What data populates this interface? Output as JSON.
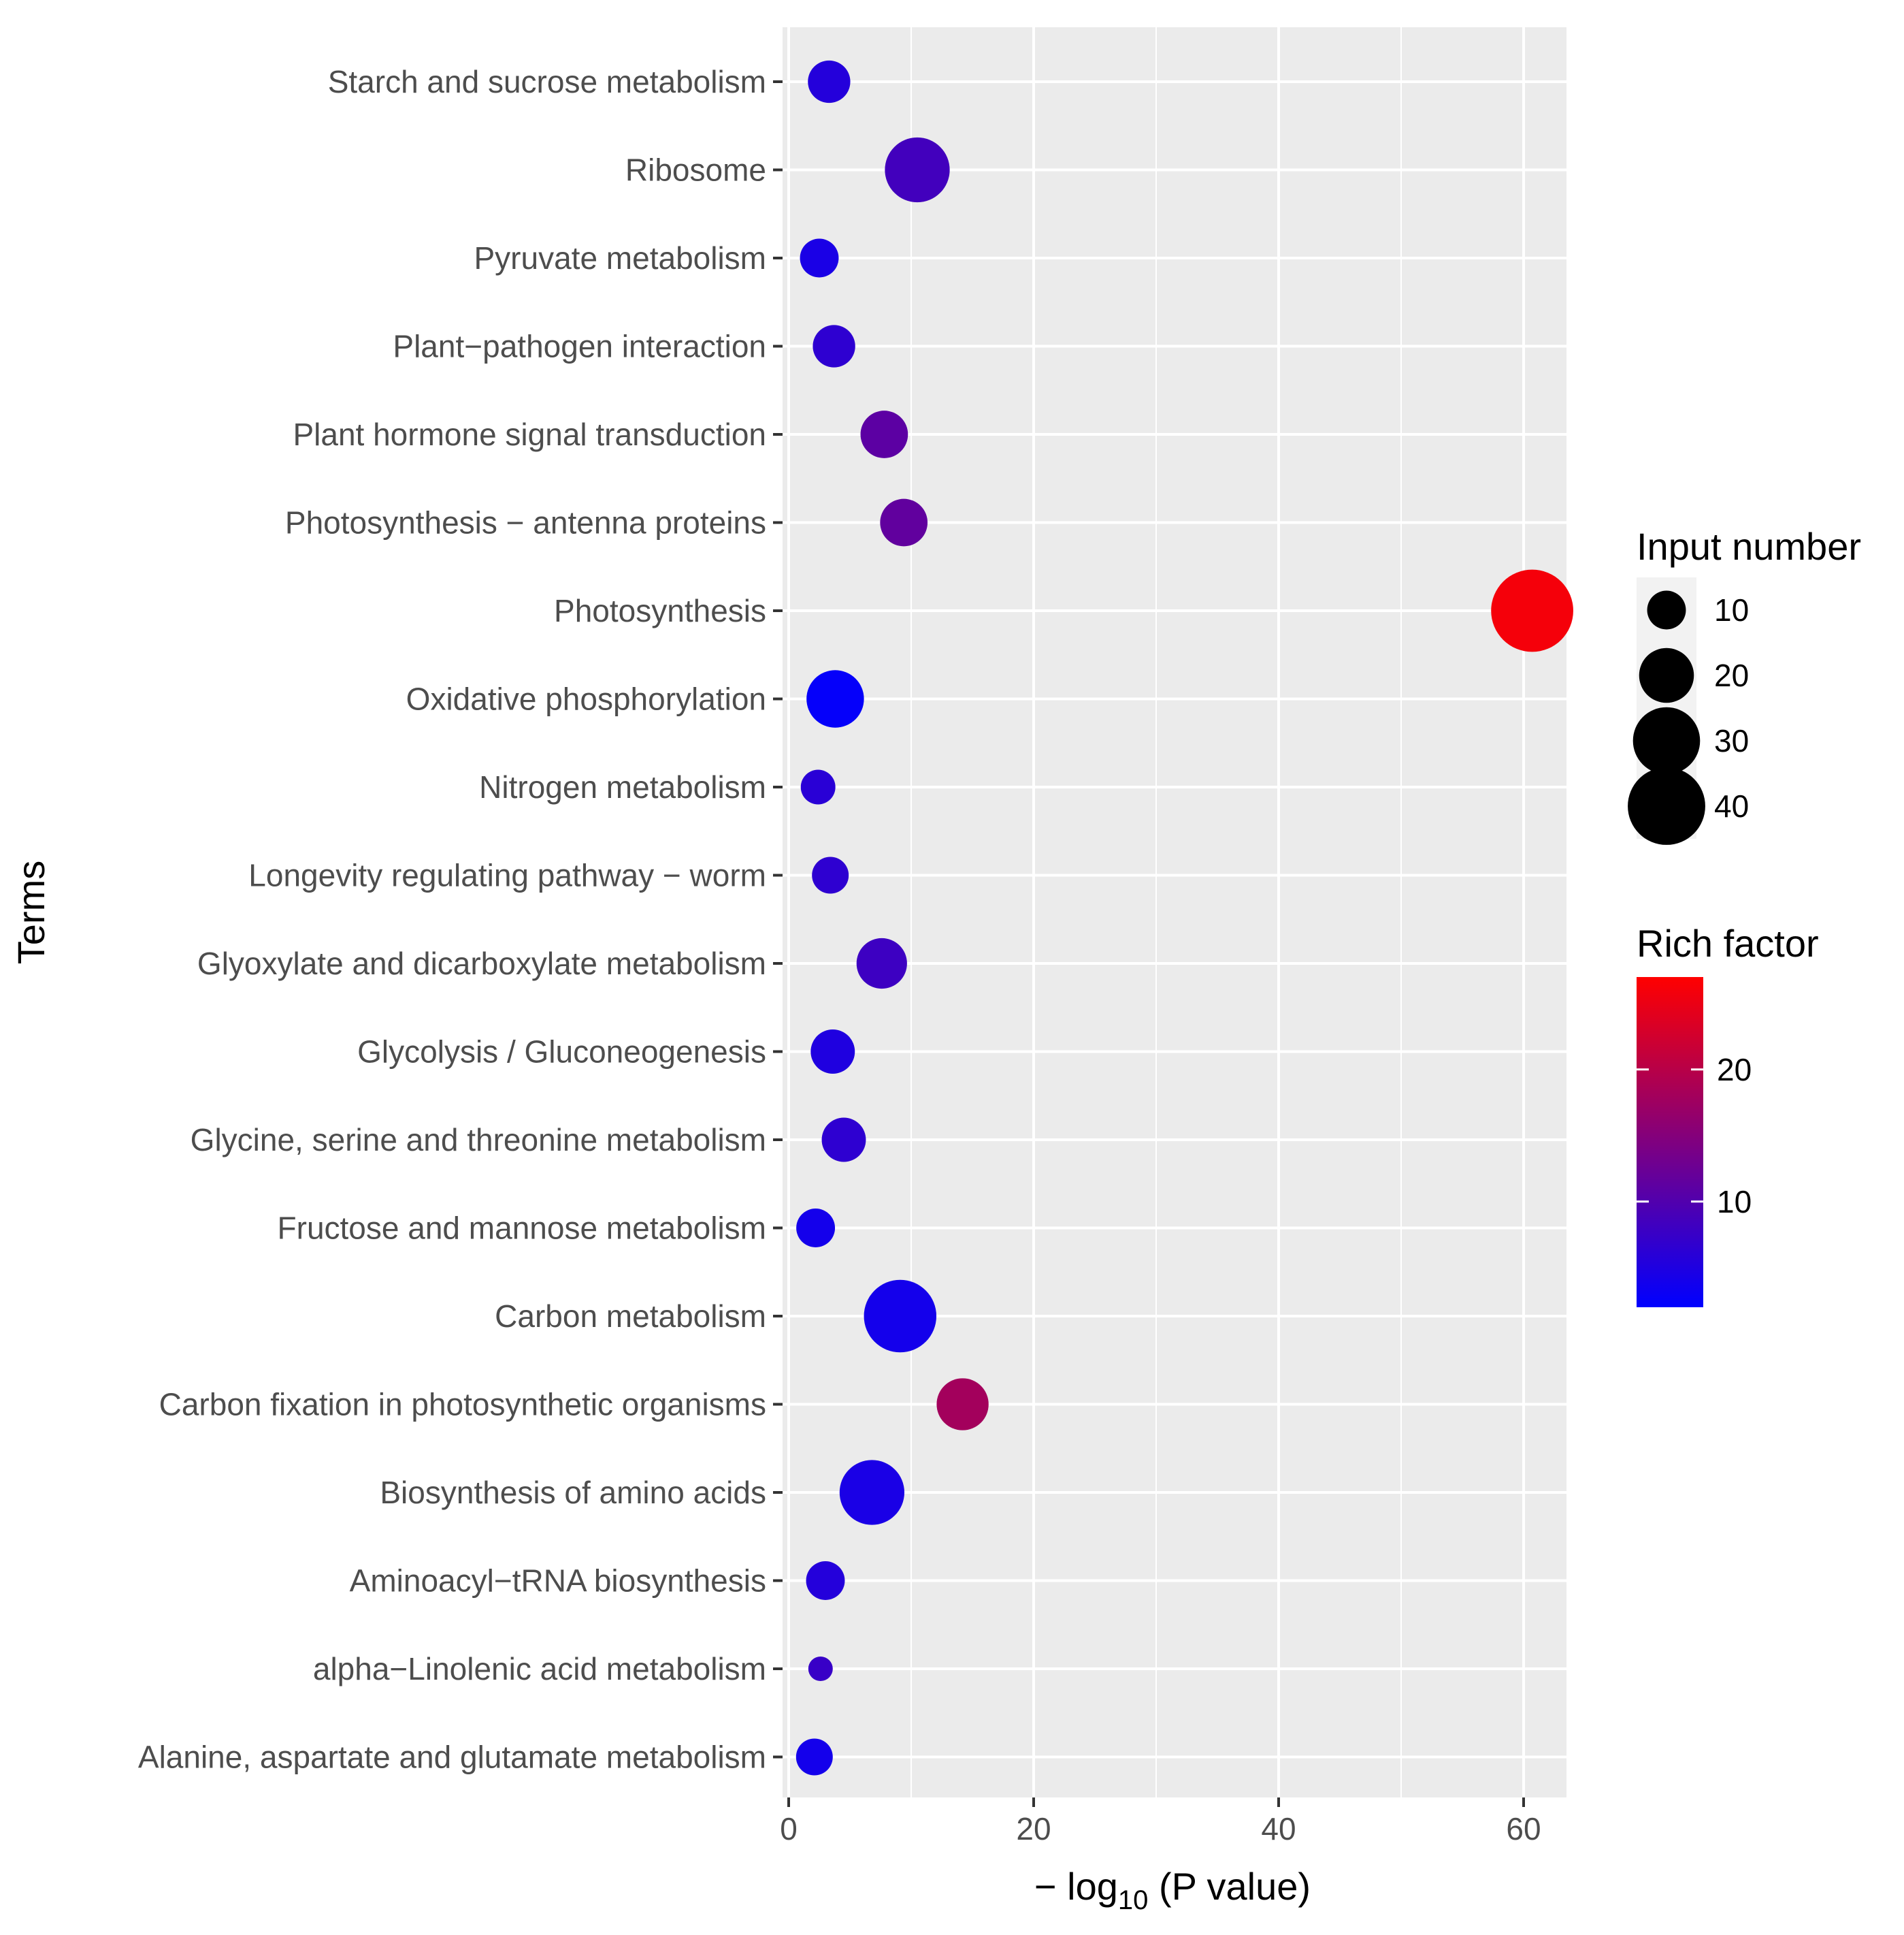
{
  "chart_data": {
    "type": "scatter",
    "subtype": "bubble",
    "title": "",
    "xlabel": {
      "prefix": "− log",
      "sub": "10",
      "suffix": " (P value)"
    },
    "ylabel": "Terms",
    "xlim": [
      -0.5,
      63.5
    ],
    "x_ticks": [
      0,
      20,
      40,
      60
    ],
    "x_tick_labels": [
      "0",
      "20",
      "40",
      "60"
    ],
    "grid": true,
    "legend_position": "right",
    "points": [
      {
        "term": "Starch and sucrose metabolism",
        "x": 3.3,
        "input": 12,
        "rich": 5.5
      },
      {
        "term": "Ribosome",
        "x": 10.5,
        "input": 28,
        "rich": 8.5
      },
      {
        "term": "Pyruvate metabolism",
        "x": 2.5,
        "input": 10,
        "rich": 4.5
      },
      {
        "term": "Plant−pathogen interaction",
        "x": 3.7,
        "input": 12,
        "rich": 6.5
      },
      {
        "term": "Plant hormone signal transduction",
        "x": 7.8,
        "input": 15,
        "rich": 11.0
      },
      {
        "term": "Photosynthesis − antenna proteins",
        "x": 9.4,
        "input": 15,
        "rich": 11.5
      },
      {
        "term": "Photosynthesis",
        "x": 60.7,
        "input": 45,
        "rich": 26.0
      },
      {
        "term": "Oxidative phosphorylation",
        "x": 3.8,
        "input": 22,
        "rich": 2.5
      },
      {
        "term": "Nitrogen metabolism",
        "x": 2.4,
        "input": 8,
        "rich": 6.0
      },
      {
        "term": "Longevity regulating pathway − worm",
        "x": 3.4,
        "input": 9,
        "rich": 6.5
      },
      {
        "term": "Glyoxylate and dicarboxylate metabolism",
        "x": 7.6,
        "input": 17,
        "rich": 8.0
      },
      {
        "term": "Glycolysis / Gluconeogenesis",
        "x": 3.6,
        "input": 13,
        "rich": 5.0
      },
      {
        "term": "Glycine, serine and threonine metabolism",
        "x": 4.5,
        "input": 13,
        "rich": 6.5
      },
      {
        "term": "Fructose and mannose metabolism",
        "x": 2.2,
        "input": 10,
        "rich": 4.0
      },
      {
        "term": "Carbon metabolism",
        "x": 9.1,
        "input": 35,
        "rich": 4.0
      },
      {
        "term": "Carbon fixation in photosynthetic organisms",
        "x": 14.2,
        "input": 18,
        "rich": 18.0
      },
      {
        "term": "Biosynthesis of amino acids",
        "x": 6.8,
        "input": 28,
        "rich": 4.5
      },
      {
        "term": "Aminoacyl−tRNA biosynthesis",
        "x": 3.0,
        "input": 10,
        "rich": 5.5
      },
      {
        "term": "alpha−Linolenic acid metabolism",
        "x": 2.6,
        "input": 4,
        "rich": 7.5
      },
      {
        "term": "Alanine, aspartate and glutamate metabolism",
        "x": 2.1,
        "input": 9,
        "rich": 4.0
      }
    ],
    "size_legend": {
      "title": "Input number",
      "values": [
        10,
        20,
        30,
        40
      ],
      "labels": [
        "10",
        "20",
        "30",
        "40"
      ]
    },
    "color_legend": {
      "title": "Rich factor",
      "range": [
        2,
        27
      ],
      "low_color": "#0000FF",
      "high_color": "#FF0000",
      "ticks": [
        10,
        20
      ],
      "tick_labels": [
        "10",
        "20"
      ]
    },
    "colors": {
      "panel_background": "#EBEBEB",
      "grid_line": "#FFFFFF",
      "tick_text": "#4D4D4D",
      "legend_key_background": "#F2F2F2"
    }
  }
}
